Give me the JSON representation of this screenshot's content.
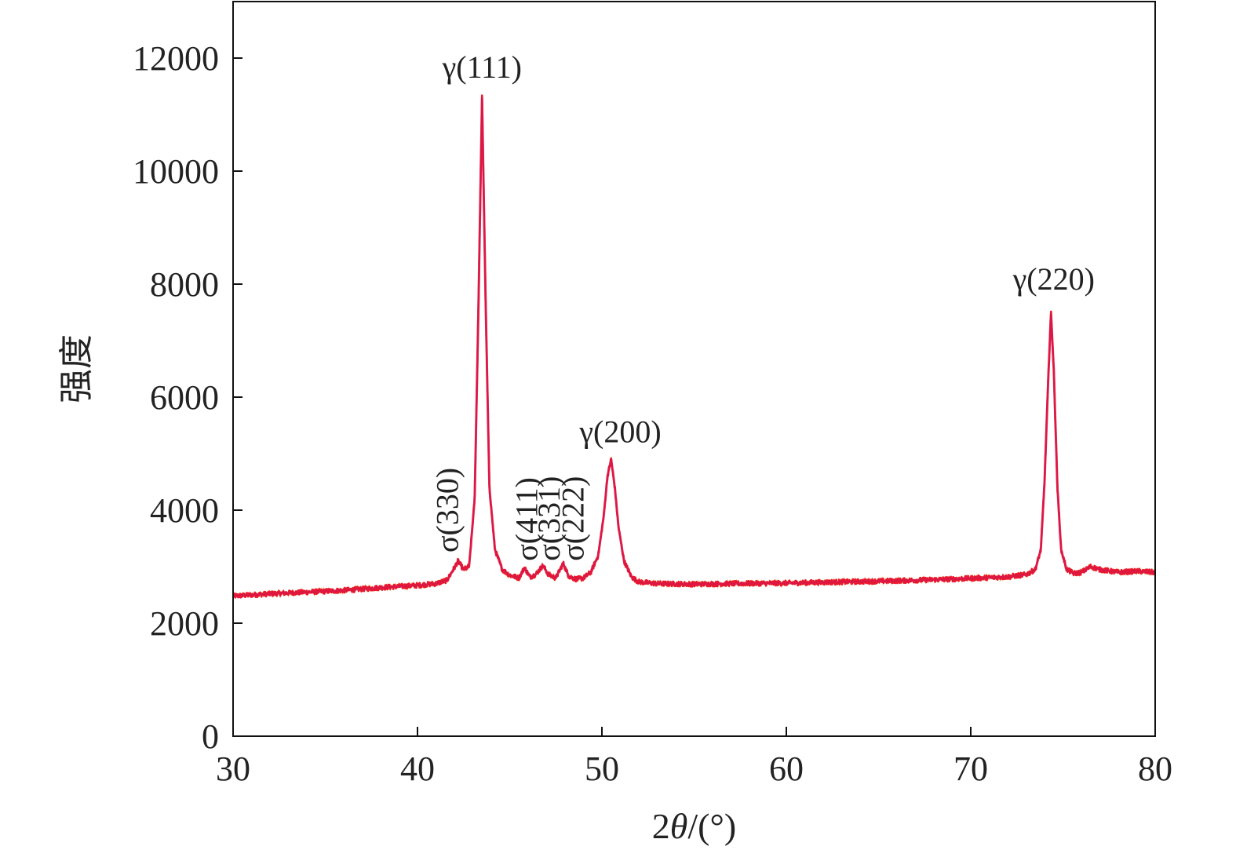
{
  "chart_data": {
    "type": "line",
    "title": "",
    "xlabel": "2θ/(°)",
    "ylabel": "强度",
    "xlim": [
      30,
      80
    ],
    "ylim": [
      0,
      13000
    ],
    "xticks": [
      30,
      40,
      50,
      60,
      70,
      80
    ],
    "yticks": [
      0,
      2000,
      4000,
      6000,
      8000,
      10000,
      12000
    ],
    "grid": false,
    "legend": "none",
    "series": [
      {
        "color": "#e8192c",
        "points": [
          [
            30.0,
            2480
          ],
          [
            32.0,
            2520
          ],
          [
            34.0,
            2550
          ],
          [
            36.0,
            2580
          ],
          [
            38.0,
            2630
          ],
          [
            40.0,
            2670
          ],
          [
            41.0,
            2700
          ],
          [
            41.6,
            2760
          ],
          [
            42.0,
            2980
          ],
          [
            42.2,
            3100
          ],
          [
            42.5,
            2950
          ],
          [
            42.8,
            3000
          ],
          [
            43.1,
            4200
          ],
          [
            43.3,
            7500
          ],
          [
            43.5,
            11300
          ],
          [
            43.7,
            7600
          ],
          [
            43.9,
            4400
          ],
          [
            44.2,
            3300
          ],
          [
            44.6,
            2950
          ],
          [
            45.0,
            2850
          ],
          [
            45.5,
            2800
          ],
          [
            45.8,
            2980
          ],
          [
            46.1,
            2820
          ],
          [
            46.4,
            2860
          ],
          [
            46.8,
            3020
          ],
          [
            47.1,
            2860
          ],
          [
            47.5,
            2800
          ],
          [
            47.9,
            3060
          ],
          [
            48.2,
            2830
          ],
          [
            48.6,
            2780
          ],
          [
            49.0,
            2800
          ],
          [
            49.4,
            2900
          ],
          [
            49.8,
            3200
          ],
          [
            50.1,
            3900
          ],
          [
            50.3,
            4600
          ],
          [
            50.5,
            4900
          ],
          [
            50.7,
            4400
          ],
          [
            50.9,
            3700
          ],
          [
            51.2,
            3100
          ],
          [
            51.6,
            2820
          ],
          [
            52.0,
            2730
          ],
          [
            53.0,
            2700
          ],
          [
            55.0,
            2690
          ],
          [
            57.0,
            2700
          ],
          [
            60.0,
            2710
          ],
          [
            63.0,
            2730
          ],
          [
            66.0,
            2750
          ],
          [
            69.0,
            2780
          ],
          [
            72.0,
            2820
          ],
          [
            73.0,
            2860
          ],
          [
            73.5,
            2950
          ],
          [
            73.8,
            3300
          ],
          [
            74.0,
            4500
          ],
          [
            74.2,
            6300
          ],
          [
            74.35,
            7500
          ],
          [
            74.5,
            6500
          ],
          [
            74.7,
            4400
          ],
          [
            74.9,
            3300
          ],
          [
            75.2,
            2950
          ],
          [
            75.6,
            2880
          ],
          [
            76.0,
            2900
          ],
          [
            76.5,
            3000
          ],
          [
            77.0,
            2950
          ],
          [
            78.0,
            2900
          ],
          [
            79.0,
            2920
          ],
          [
            80.0,
            2900
          ]
        ]
      }
    ],
    "annotations": [
      {
        "text": "γ(111)",
        "x": 43.5,
        "y": 11650,
        "orientation": "horizontal"
      },
      {
        "text": "γ(200)",
        "x": 51.0,
        "y": 5200,
        "orientation": "horizontal"
      },
      {
        "text": "γ(220)",
        "x": 74.5,
        "y": 7900,
        "orientation": "horizontal"
      },
      {
        "text": "σ(330)",
        "x": 41.6,
        "y": 3250,
        "orientation": "vertical"
      },
      {
        "text": "σ(411)",
        "x": 45.9,
        "y": 3100,
        "orientation": "vertical"
      },
      {
        "text": "σ(331)",
        "x": 47.1,
        "y": 3100,
        "orientation": "vertical"
      },
      {
        "text": "σ(222)",
        "x": 48.4,
        "y": 3100,
        "orientation": "vertical"
      }
    ]
  }
}
